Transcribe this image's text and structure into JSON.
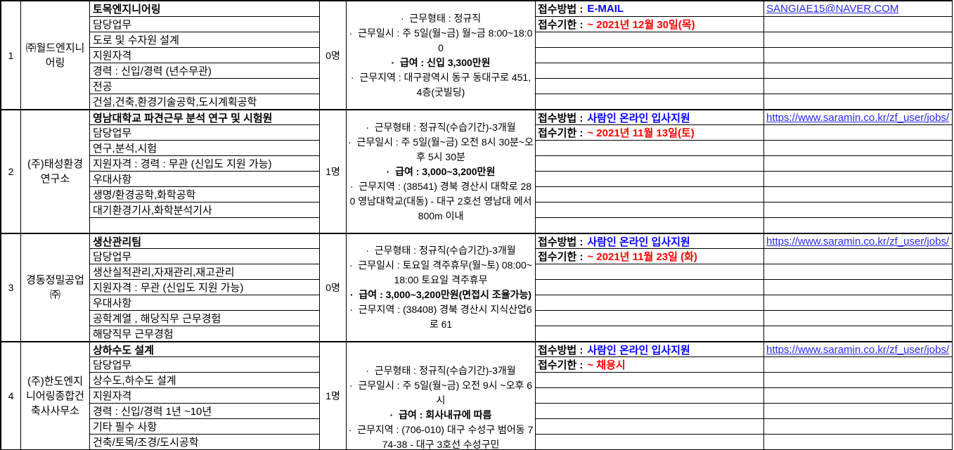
{
  "colors": {
    "method_value": "#0000ff",
    "deadline_value": "#ff0000",
    "link": "#2a2af0",
    "border": "#000000"
  },
  "jobs": [
    {
      "no": "1",
      "company": "㈜월드엔지니어링",
      "headcount": "0명",
      "details": [
        "토목엔지니어링",
        "담당업무",
        "도로 및 수자원 설계",
        "지원자격",
        "경력 : 신입/경력 (년수무관)",
        "전공",
        "건설,건축,환경기술공학,도시계획공학"
      ],
      "conditions": [
        "·  근무형태 : 정규직",
        "·  근무일시 : 주 5일(월~금) 월~금 8:00~18:00",
        "·  급여 : 신입 3,300만원",
        "·  근무지역 : 대구광역시 동구 동대구로 451, 4층(굿빌딩)"
      ],
      "apply": {
        "method_label": "접수방법 :",
        "method_value": "E-MAIL",
        "deadline_label": "접수기한 :",
        "deadline_value": "~ 2021년 12월 30일(목)",
        "link": "SANGIAE15@NAVER.COM"
      }
    },
    {
      "no": "2",
      "company": "(주)태성환경연구소",
      "headcount": "1명",
      "details": [
        "영남대학교 파견근무 분석 연구 및 시험원",
        "담당업무",
        "연구,분석,시험",
        "지원자격 : 경력 : 무관 (신입도 지원 가능)",
        "우대사항",
        "생명/환경공학,화학공학",
        "대기환경기사,화학분석기사",
        ""
      ],
      "conditions": [
        "·  근무형태 : 정규직(수습기간)-3개월",
        "·  근무일시 : 주 5일(월~금) 오전 8시 30분~오후 5시 30분",
        "·  급여 : 3,000~3,200만원",
        "·  근무지역 : (38541) 경북 경산시 대학로 280 영남대학교(대동) - 대구 2호선 영남대 에서 800m 이내"
      ],
      "apply": {
        "method_label": "접수방법 :",
        "method_value": "사람인 온라인 입사지원",
        "deadline_label": "접수기한 :",
        "deadline_value": "~ 2021년 11월 13일(토)",
        "link": "https://www.saramin.co.kr/zf_user/jobs/"
      }
    },
    {
      "no": "3",
      "company": "경동정밀공업㈜",
      "headcount": "0명",
      "details": [
        "생산관리팀",
        "담당업무",
        "생산실적관리,자재관리,재고관리",
        "지원자격 : 무관 (신입도 지원 가능)",
        "우대사항",
        "공학계열 , 해당직무 근무경험",
        "해당직무 근무경험"
      ],
      "conditions": [
        "·  근무형태 : 정규직(수습기간)-3개월",
        "·  근무일시 : 토요일 격주휴무(월~토) 08:00~18:00 토요일 격주휴무",
        "·  급여 : 3,000~3,200만원(면접시 조율가능)",
        "·  근무지역 : (38408) 경북 경산시 지식산업6로 61"
      ],
      "apply": {
        "method_label": "접수방법 :",
        "method_value": "사람인 온라인 입사지원",
        "deadline_label": "접수기한 :",
        "deadline_value": "~ 2021년 11월 23일 (화)",
        "link": "https://www.saramin.co.kr/zf_user/jobs/"
      }
    },
    {
      "no": "4",
      "company": "(주)한도엔지니어링종합건축사사무소",
      "headcount": "1명",
      "details": [
        "상하수도 설계",
        "담당업무",
        "상수도,하수도 설계",
        "지원자격",
        "경력 : 신입/경력 1년 ~10년",
        "기타 필수 사항",
        "건축/토목/조경/도시공학"
      ],
      "conditions": [
        "·  근무형태 : 정규직(수습기간)-3개월",
        "·  근무일시 : 주 5일(월~금) 오전 9시 ~오후 6시",
        "·  급여 : 회사내규에 따름",
        "·  근무지역 : (706-010) 대구 수성구 범어동 774-38 - 대구 3호선 수성구민"
      ],
      "apply": {
        "method_label": "접수방법 :",
        "method_value": "사람인 온라인 입사지원",
        "deadline_label": "접수기한 :",
        "deadline_value": "~ 채용시",
        "link": "https://www.saramin.co.kr/zf_user/jobs/"
      }
    }
  ]
}
